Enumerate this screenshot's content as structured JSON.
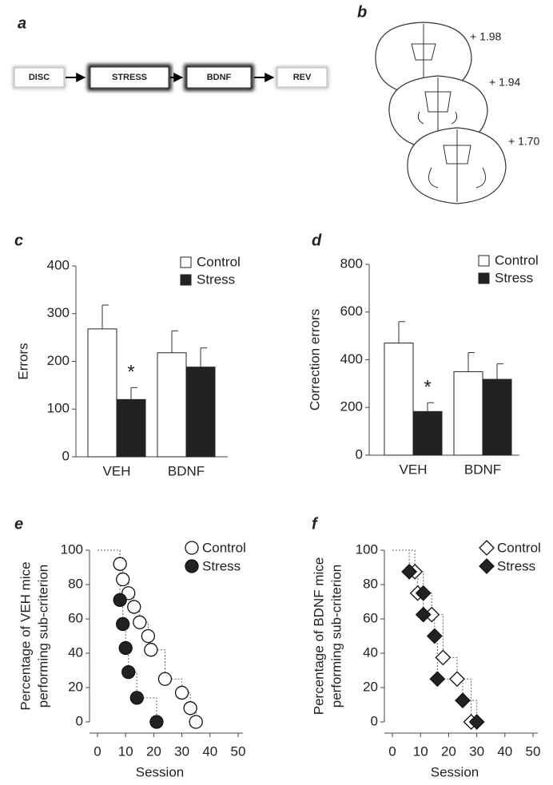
{
  "panel_labels": [
    "a",
    "b",
    "c",
    "d",
    "e",
    "f"
  ],
  "flow": [
    "DISC",
    "STRESS",
    "BDNF",
    "REV"
  ],
  "sections": [
    "+ 1.98",
    "+ 1.94",
    "+ 1.70"
  ],
  "chart_data": [
    {
      "type": "bar",
      "ylabel": "Errors",
      "categories": [
        "VEH",
        "BDNF"
      ],
      "series": [
        {
          "name": "Control",
          "color": "#ffffff",
          "values": [
            268,
            218
          ],
          "errors": [
            50,
            46
          ]
        },
        {
          "name": "Stress",
          "color": "#222222",
          "values": [
            120,
            188
          ],
          "errors": [
            25,
            40
          ]
        }
      ],
      "ylim": [
        0,
        400
      ],
      "yticks": [
        0,
        100,
        200,
        300,
        400
      ],
      "annotations": [
        "*"
      ]
    },
    {
      "type": "bar",
      "ylabel": "Correction errors",
      "categories": [
        "VEH",
        "BDNF"
      ],
      "series": [
        {
          "name": "Control",
          "color": "#ffffff",
          "values": [
            470,
            350
          ],
          "errors": [
            90,
            80
          ]
        },
        {
          "name": "Stress",
          "color": "#222222",
          "values": [
            183,
            318
          ],
          "errors": [
            37,
            65
          ]
        }
      ],
      "ylim": [
        0,
        800
      ],
      "yticks": [
        0,
        200,
        400,
        600,
        800
      ],
      "annotations": [
        "*"
      ]
    },
    {
      "type": "step",
      "xlabel": "Session",
      "ylabel": [
        "Percentage of VEH mice",
        "performing sub-criterion"
      ],
      "series": [
        {
          "name": "Control",
          "color": "#ffffff",
          "marker": "circle",
          "x": [
            8,
            9,
            11,
            13,
            15,
            18,
            19,
            24,
            30,
            33,
            35
          ],
          "values": [
            92,
            83,
            75,
            67,
            58,
            50,
            42,
            25,
            17,
            8,
            0
          ]
        },
        {
          "name": "Stress",
          "color": "#222222",
          "marker": "circle",
          "x": [
            8,
            9,
            10,
            11,
            14,
            21
          ],
          "values": [
            71,
            57,
            43,
            29,
            14,
            0
          ]
        }
      ],
      "xlim": [
        0,
        50
      ],
      "xticks": [
        0,
        10,
        20,
        30,
        40,
        50
      ],
      "ylim": [
        0,
        100
      ],
      "yticks": [
        0,
        20,
        40,
        60,
        80,
        100
      ]
    },
    {
      "type": "step",
      "xlabel": "Session",
      "ylabel": [
        "Percentage of BDNF mice",
        "performing sub-criterion"
      ],
      "series": [
        {
          "name": "Control",
          "color": "#ffffff",
          "marker": "diamond",
          "x": [
            8,
            9,
            14,
            18,
            23,
            28
          ],
          "values": [
            87.5,
            75,
            62.5,
            37.5,
            25,
            0
          ]
        },
        {
          "name": "Stress",
          "color": "#222222",
          "marker": "diamond",
          "x": [
            6,
            11,
            11,
            15,
            16,
            25,
            30
          ],
          "values": [
            87.5,
            75,
            62.5,
            50,
            25,
            12.5,
            0
          ]
        }
      ],
      "xlim": [
        0,
        50
      ],
      "xticks": [
        0,
        10,
        20,
        30,
        40,
        50
      ],
      "ylim": [
        0,
        100
      ],
      "yticks": [
        0,
        20,
        40,
        60,
        80,
        100
      ]
    }
  ]
}
